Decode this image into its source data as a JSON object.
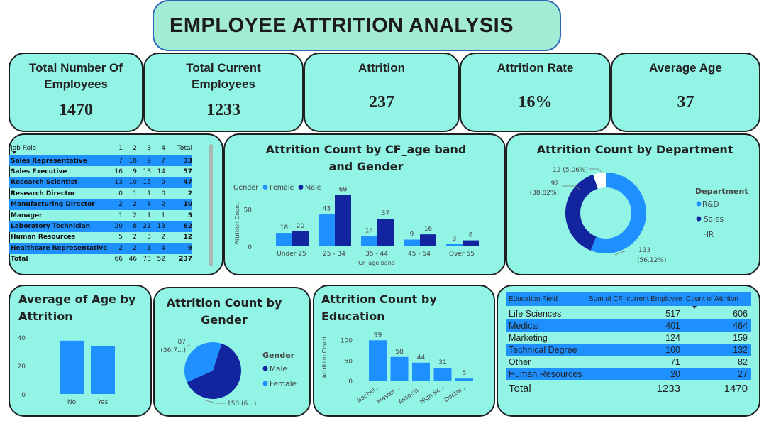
{
  "title": "EMPLOYEE ATTRITION ANALYSIS",
  "kpis": [
    {
      "label": "Total Number Of Employees",
      "value": "1470"
    },
    {
      "label": "Total Current Employees",
      "value": "1233"
    },
    {
      "label": "Attrition",
      "value": "237"
    },
    {
      "label": "Attrition Rate",
      "value": "16%"
    },
    {
      "label": "Average Age",
      "value": "37"
    }
  ],
  "job_role_matrix": {
    "headers": [
      "Job Role",
      "1",
      "2",
      "3",
      "4",
      "Total"
    ],
    "rows": [
      {
        "role": "Sales Representative",
        "v": [
          "7",
          "10",
          "9",
          "7"
        ],
        "total": "33"
      },
      {
        "role": "Sales Executive",
        "v": [
          "16",
          "9",
          "18",
          "14"
        ],
        "total": "57"
      },
      {
        "role": "Research Scientist",
        "v": [
          "13",
          "10",
          "15",
          "9"
        ],
        "total": "47"
      },
      {
        "role": "Research Director",
        "v": [
          "0",
          "1",
          "1",
          "0"
        ],
        "total": "2"
      },
      {
        "role": "Manufacturing Director",
        "v": [
          "2",
          "2",
          "4",
          "2"
        ],
        "total": "10"
      },
      {
        "role": "Manager",
        "v": [
          "1",
          "2",
          "1",
          "1"
        ],
        "total": "5"
      },
      {
        "role": "Laboratory Technician",
        "v": [
          "20",
          "8",
          "21",
          "13"
        ],
        "total": "62"
      },
      {
        "role": "Human Resources",
        "v": [
          "5",
          "2",
          "3",
          "2"
        ],
        "total": "12"
      },
      {
        "role": "Healthcare Representative",
        "v": [
          "2",
          "2",
          "1",
          "4"
        ],
        "total": "9"
      }
    ],
    "total_row": {
      "role": "Total",
      "v": [
        "66",
        "46",
        "73",
        "52"
      ],
      "total": "237"
    }
  },
  "education_table": {
    "headers": [
      "Education Field",
      "Sum of CF_current Employee",
      "Count of Attrition"
    ],
    "rows": [
      [
        "Life Sciences",
        "517",
        "606"
      ],
      [
        "Medical",
        "401",
        "464"
      ],
      [
        "Marketing",
        "124",
        "159"
      ],
      [
        "Technical Degree",
        "100",
        "132"
      ],
      [
        "Other",
        "71",
        "82"
      ],
      [
        "Human Resources",
        "20",
        "27"
      ]
    ],
    "total": [
      "Total",
      "1233",
      "1470"
    ]
  },
  "colors": {
    "light": "#1e90ff",
    "dark": "#13259e",
    "card": "#92f4e4"
  },
  "chart_data": [
    {
      "type": "bar",
      "title": "Attrition Count by CF_age band and Gender",
      "legend_title": "Gender",
      "xlabel": "CF_age band",
      "ylabel": "Attrition Count",
      "categories": [
        "Under 25",
        "25 - 34",
        "35 - 44",
        "45 - 54",
        "Over 55"
      ],
      "series": [
        {
          "name": "Female",
          "values": [
            18,
            43,
            14,
            9,
            3
          ]
        },
        {
          "name": "Male",
          "values": [
            20,
            69,
            37,
            16,
            8
          ]
        }
      ],
      "yticks": [
        "0",
        "50"
      ],
      "ylim": [
        0,
        75
      ],
      "legend": "top-left"
    },
    {
      "type": "pie",
      "title": "Attrition Count by Department",
      "legend_title": "Department",
      "slices": [
        {
          "name": "R&D",
          "value": 133,
          "label": "133",
          "pct": "(56.12%)"
        },
        {
          "name": "Sales",
          "value": 92,
          "label": "92",
          "pct": "(38.82%)"
        },
        {
          "name": "HR",
          "value": 12,
          "label": "12 (5.06%)",
          "pct": ""
        }
      ],
      "legend": "right"
    },
    {
      "type": "bar",
      "title": "Average of Age by Attrition",
      "categories": [
        "No",
        "Yes"
      ],
      "values": [
        37.6,
        33.6
      ],
      "yticks": [
        "0",
        "20",
        "40"
      ],
      "ylim": [
        0,
        45
      ]
    },
    {
      "type": "pie",
      "title": "Attrition Count by Gender",
      "legend_title": "Gender",
      "slices": [
        {
          "name": "Male",
          "value": 150,
          "label": "150 (6...)"
        },
        {
          "name": "Female",
          "value": 87,
          "label": "87",
          "label2": "(36.7...)"
        }
      ],
      "legend": "right"
    },
    {
      "type": "bar",
      "title": "Attrition Count by Education",
      "ylabel": "Attrition Count",
      "categories": [
        "Bachel...",
        "Master ...",
        "Associa...",
        "High Sc...",
        "Doctor..."
      ],
      "values": [
        99,
        58,
        44,
        31,
        5
      ],
      "yticks": [
        "0",
        "50",
        "100"
      ],
      "ylim": [
        0,
        110
      ]
    }
  ]
}
